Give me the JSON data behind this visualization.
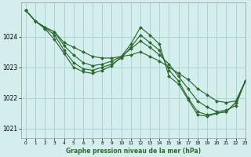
{
  "title": "Graphe pression niveau de la mer (hPa)",
  "bg_color": "#d4eeee",
  "grid_color": "#aad4d4",
  "line_color": "#2d6b2d",
  "marker_color": "#2d6b2d",
  "xlim": [
    -0.5,
    23
  ],
  "ylim": [
    1020.7,
    1025.1
  ],
  "yticks": [
    1021,
    1022,
    1023,
    1024
  ],
  "xticks": [
    0,
    1,
    2,
    3,
    4,
    5,
    6,
    7,
    8,
    9,
    10,
    11,
    12,
    13,
    14,
    15,
    16,
    17,
    18,
    19,
    20,
    21,
    22,
    23
  ],
  "series": [
    [
      1024.85,
      1024.5,
      1024.3,
      1024.15,
      1023.8,
      1023.65,
      1023.5,
      1023.35,
      1023.3,
      1023.3,
      1023.35,
      1023.4,
      1023.5,
      1023.35,
      1023.2,
      1023.0,
      1022.8,
      1022.6,
      1022.3,
      1022.1,
      1021.9,
      1021.85,
      1021.9,
      1022.55
    ],
    [
      1024.85,
      1024.5,
      1024.3,
      1024.15,
      1023.7,
      1023.4,
      1023.15,
      1023.05,
      1023.1,
      1023.2,
      1023.35,
      1023.6,
      1023.85,
      1023.65,
      1023.4,
      1023.1,
      1022.7,
      1022.3,
      1021.9,
      1021.7,
      1021.55,
      1021.6,
      1021.75,
      1022.55
    ],
    [
      1024.85,
      1024.5,
      1024.28,
      1024.05,
      1023.55,
      1023.15,
      1022.95,
      1022.9,
      1023.0,
      1023.1,
      1023.3,
      1023.65,
      1024.05,
      1023.8,
      1023.55,
      1022.9,
      1022.55,
      1022.0,
      1021.55,
      1021.45,
      1021.5,
      1021.55,
      1021.85,
      1022.55
    ],
    [
      1024.85,
      1024.5,
      1024.25,
      1023.9,
      1023.45,
      1023.0,
      1022.85,
      1022.8,
      1022.9,
      1023.05,
      1023.35,
      1023.75,
      1024.3,
      1024.05,
      1023.75,
      1022.7,
      1022.45,
      1021.95,
      1021.45,
      1021.4,
      1021.5,
      1021.55,
      1021.85,
      1022.55
    ]
  ]
}
